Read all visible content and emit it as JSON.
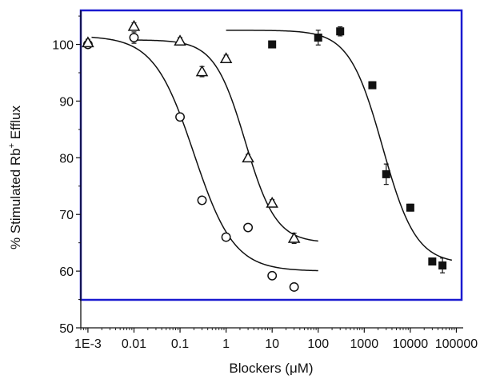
{
  "chart_data": {
    "type": "scatter",
    "xlabel_main": "Blockers (",
    "xlabel_mu": "μ",
    "xlabel_end": "M)",
    "ylabel_pre": "% Stimulated Rb",
    "ylabel_sup": "+",
    "ylabel_post": " Efflux",
    "xscale": "log",
    "xlim": [
      0.0007,
      130000
    ],
    "ylim": [
      50,
      106
    ],
    "xticks": [
      {
        "value": 0.001,
        "label": "1E-3"
      },
      {
        "value": 0.01,
        "label": "0.01"
      },
      {
        "value": 0.1,
        "label": "0.1"
      },
      {
        "value": 1,
        "label": "1"
      },
      {
        "value": 10,
        "label": "10"
      },
      {
        "value": 100,
        "label": "100"
      },
      {
        "value": 1000,
        "label": "1000"
      },
      {
        "value": 10000,
        "label": "10000"
      },
      {
        "value": 100000,
        "label": "100000"
      }
    ],
    "yticks": [
      {
        "value": 50,
        "label": "50"
      },
      {
        "value": 60,
        "label": "60"
      },
      {
        "value": 70,
        "label": "70"
      },
      {
        "value": 80,
        "label": "80"
      },
      {
        "value": 90,
        "label": "90"
      },
      {
        "value": 100,
        "label": "100"
      }
    ],
    "frame_color": "#1a1ad0",
    "series": [
      {
        "marker": "circle",
        "points": [
          {
            "x": 0.001,
            "y": 100,
            "err": 0.6
          },
          {
            "x": 0.01,
            "y": 101.2,
            "err": 1.0
          },
          {
            "x": 0.1,
            "y": 87.2,
            "err": 0.6
          },
          {
            "x": 0.3,
            "y": 72.5,
            "err": 0.5
          },
          {
            "x": 1,
            "y": 66,
            "err": 0.5
          },
          {
            "x": 3,
            "y": 67.7,
            "err": 0.5
          },
          {
            "x": 10,
            "y": 59.2,
            "err": 0.5
          },
          {
            "x": 30,
            "y": 57.2,
            "err": 0.5
          }
        ],
        "fit": {
          "top": 101.5,
          "bottom": 60,
          "ic50": 0.2,
          "hill": 1.0,
          "xmin": 0.0012,
          "xmax": 100
        }
      },
      {
        "marker": "triangle",
        "points": [
          {
            "x": 0.001,
            "y": 100.3,
            "err": 0.6
          },
          {
            "x": 0.01,
            "y": 103.2,
            "err": 0.6
          },
          {
            "x": 0.1,
            "y": 100.6,
            "err": 0.6
          },
          {
            "x": 0.3,
            "y": 95.2,
            "err": 0.9
          },
          {
            "x": 1,
            "y": 97.5,
            "err": 0.6
          },
          {
            "x": 3,
            "y": 80,
            "err": 0.6
          },
          {
            "x": 10,
            "y": 72,
            "err": 0.6
          },
          {
            "x": 30,
            "y": 65.8,
            "err": 0.9
          }
        ],
        "fit": {
          "top": 100.8,
          "bottom": 65,
          "ic50": 2.6,
          "hill": 1.3,
          "xmin": 0.01,
          "xmax": 100
        }
      },
      {
        "marker": "square",
        "points": [
          {
            "x": 10,
            "y": 100,
            "err": 0.6
          },
          {
            "x": 100,
            "y": 101.2,
            "err": 1.3
          },
          {
            "x": 300,
            "y": 102.3,
            "err": 0.8
          },
          {
            "x": 1500,
            "y": 92.8,
            "err": 0.6
          },
          {
            "x": 3000,
            "y": 77.1,
            "err": 1.8
          },
          {
            "x": 10000,
            "y": 71.2,
            "err": 0.6
          },
          {
            "x": 30000,
            "y": 61.7,
            "err": 0.6
          },
          {
            "x": 50000,
            "y": 61,
            "err": 1.3
          }
        ],
        "fit": {
          "top": 102.5,
          "bottom": 61.3,
          "ic50": 2500,
          "hill": 1.2,
          "xmin": 1,
          "xmax": 80000
        }
      }
    ]
  }
}
